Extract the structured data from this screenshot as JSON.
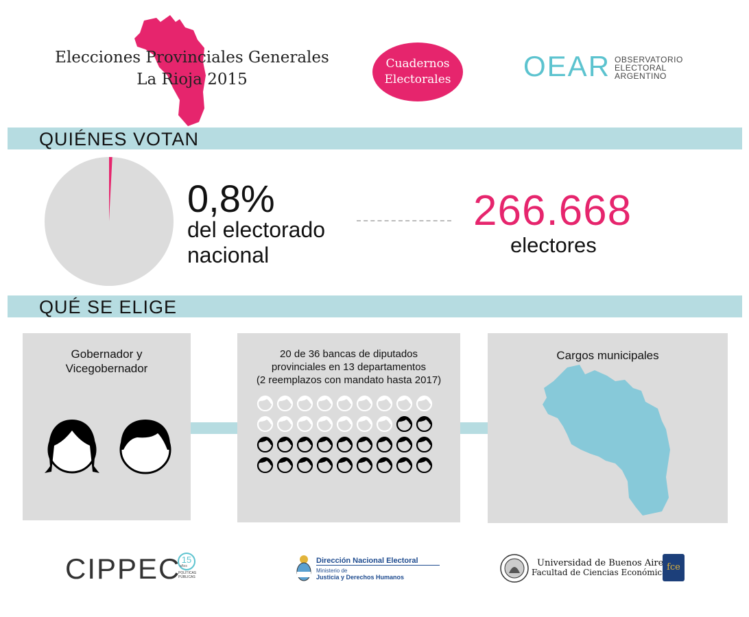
{
  "header": {
    "title_line1": "Elecciones Provinciales Generales",
    "title_line2": "La Rioja 2015",
    "badge_line1": "Cuadernos",
    "badge_line2": "Electorales",
    "oear_mark": "OEAR",
    "oear_line1": "OBSERVATORIO",
    "oear_line2": "ELECTORAL",
    "oear_line3": "ARGENTINO"
  },
  "sections": {
    "quienes_votan": "QUIÉNES VOTAN",
    "que_se_elige": "QUÉ SE ELIGE"
  },
  "stats": {
    "share": "0,8%",
    "share_label_line1": "del electorado",
    "share_label_line2": "nacional",
    "share_fraction": 0.008,
    "voters": "266.668",
    "voters_label": "electores"
  },
  "boxes": {
    "executive_line1": "Gobernador y",
    "executive_line2": "Vicegobernador",
    "legislature_line1": "20 de 36 bancas de diputados",
    "legislature_line2": "provinciales en 13 departamentos",
    "legislature_line3": "(2 reemplazos con mandato hasta 2017)",
    "seats_total": 36,
    "seats_elected": 20,
    "municipal": "Cargos municipales"
  },
  "footer": {
    "cippec": "CIPPEC",
    "cippec_badge": "15",
    "cippec_sub1": "años",
    "cippec_sub2": "POLÍTICAS",
    "cippec_sub3": "PÚBLICAS",
    "dne_title": "Dirección Nacional Electoral",
    "dne_line1": "Ministerio de",
    "dne_line2": "Justicia y Derechos Humanos",
    "uba_line1": "Universidad de Buenos Aires",
    "uba_line2": "Facultad de Ciencias Económicas",
    "fce": "fce"
  },
  "colors": {
    "accent": "#e6256d",
    "bar": "#b6dce1",
    "map": "#87c9d9",
    "box": "#dcdcdc"
  }
}
